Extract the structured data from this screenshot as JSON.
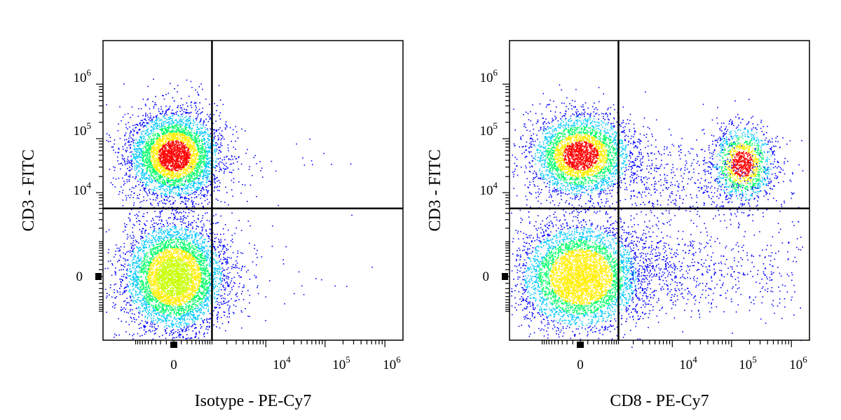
{
  "chart_data": [
    {
      "type": "scatter",
      "subtype": "flow-cytometry-density-dot-plot",
      "xlabel": "Isotype - PE-Cy7",
      "ylabel": "CD3 - FITC",
      "x_scale": "biexponential",
      "y_scale": "biexponential",
      "x_ticks": [
        {
          "label": "0"
        },
        {
          "base": "10",
          "exp": "4"
        },
        {
          "base": "10",
          "exp": "5"
        },
        {
          "base": "10",
          "exp": "6"
        }
      ],
      "y_ticks": [
        {
          "label": "0"
        },
        {
          "base": "10",
          "exp": "4"
        },
        {
          "base": "10",
          "exp": "5"
        },
        {
          "base": "10",
          "exp": "6"
        }
      ],
      "gate": {
        "x": 1000,
        "y": 5000
      },
      "density_colors": [
        "#0000ff",
        "#00c8ff",
        "#00ff66",
        "#ffee00",
        "#ff0000"
      ],
      "populations": [
        {
          "x": 0,
          "y": 50000,
          "sx": 0.38,
          "sy": 0.4,
          "count": 4200,
          "peak": "#ff0000"
        },
        {
          "x": 0,
          "y": 0,
          "sx": 0.42,
          "sy": 0.5,
          "count": 5200,
          "peak": "#c8ff00"
        }
      ]
    },
    {
      "type": "scatter",
      "subtype": "flow-cytometry-density-dot-plot",
      "xlabel": "CD8 - PE-Cy7",
      "ylabel": "CD3 - FITC",
      "x_scale": "biexponential",
      "y_scale": "biexponential",
      "x_ticks": [
        {
          "label": "0"
        },
        {
          "base": "10",
          "exp": "4"
        },
        {
          "base": "10",
          "exp": "5"
        },
        {
          "base": "10",
          "exp": "6"
        }
      ],
      "y_ticks": [
        {
          "label": "0"
        },
        {
          "base": "10",
          "exp": "4"
        },
        {
          "base": "10",
          "exp": "5"
        },
        {
          "base": "10",
          "exp": "6"
        }
      ],
      "gate": {
        "x": 1000,
        "y": 5000
      },
      "density_colors": [
        "#0000ff",
        "#00c8ff",
        "#00ff66",
        "#ffee00",
        "#ff0000"
      ],
      "populations": [
        {
          "x": 0,
          "y": 50000,
          "sx": 0.42,
          "sy": 0.38,
          "count": 3400,
          "peak": "#ff0000"
        },
        {
          "x": 150000,
          "y": 35000,
          "sx": 0.26,
          "sy": 0.35,
          "count": 1400,
          "peak": "#ff0000"
        },
        {
          "x": 0,
          "y": 0,
          "sx": 0.5,
          "sy": 0.48,
          "count": 4800,
          "peak": "#ffee00"
        }
      ]
    }
  ]
}
